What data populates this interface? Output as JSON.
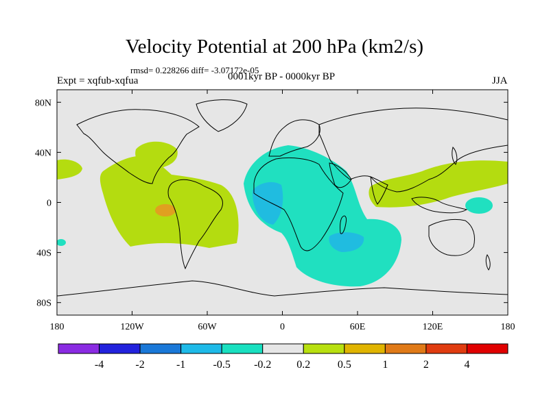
{
  "title": "Velocity Potential at 200 hPa (km2/s)",
  "stats": "rmsd= 0.228266 diff= -3.07172e-05",
  "subtitle_left": "Expt = xqfub-xqfua",
  "subtitle_center": "0001kyr BP - 0000kyr BP",
  "subtitle_right": "JJA",
  "chart_data": {
    "type": "contour-map",
    "variable": "Velocity potential difference at 200 hPa",
    "units": "km2/s",
    "x_ticks": [
      {
        "value": -180,
        "label": "180"
      },
      {
        "value": -120,
        "label": "120W"
      },
      {
        "value": -60,
        "label": "60W"
      },
      {
        "value": 0,
        "label": "0"
      },
      {
        "value": 60,
        "label": "60E"
      },
      {
        "value": 120,
        "label": "120E"
      },
      {
        "value": 180,
        "label": "180"
      }
    ],
    "y_ticks": [
      {
        "value": 80,
        "label": "80N"
      },
      {
        "value": 40,
        "label": "40N"
      },
      {
        "value": 0,
        "label": "0"
      },
      {
        "value": -40,
        "label": "40S"
      },
      {
        "value": -80,
        "label": "80S"
      }
    ],
    "xlim": [
      -180,
      180
    ],
    "ylim": [
      -90,
      90
    ],
    "colorbar": {
      "boundaries": [
        "-4",
        "-2",
        "-1",
        "-0.5",
        "-0.2",
        "0.2",
        "0.5",
        "1",
        "2",
        "4"
      ],
      "colors": [
        "#8a2be2",
        "#2222dd",
        "#1a78d8",
        "#1ebae8",
        "#19e0c0",
        "#e6e6e6",
        "#b8e010",
        "#e0b400",
        "#e07a18",
        "#e03c10",
        "#e00000"
      ]
    },
    "regions": [
      {
        "name": "Americas and tropical Pacific",
        "level": "0.2 to 0.5",
        "color": "#b4dc10"
      },
      {
        "name": "North Atlantic off eastern North America",
        "level": "0.2 to 0.5",
        "color": "#b4dc10"
      },
      {
        "name": "Central North Pacific",
        "level": "0.2 to 0.5",
        "color": "#b4dc10"
      },
      {
        "name": "Eastern tropical Pacific",
        "level": "0.5 to 1",
        "color": "#e0a020"
      },
      {
        "name": "Western Pacific and East Asia",
        "level": "0.2 to 0.5",
        "color": "#b4dc10"
      },
      {
        "name": "Africa and Indian Ocean",
        "level": "-0.5 to -0.2",
        "color": "#20e0c0"
      },
      {
        "name": "West Africa",
        "level": "-1 to -0.5",
        "color": "#20bce0"
      },
      {
        "name": "Madagascar region",
        "level": "-1 to -0.5",
        "color": "#20bce0"
      },
      {
        "name": "Western Pacific near New Guinea",
        "level": "-0.5 to -0.2",
        "color": "#20e0c0"
      },
      {
        "name": "South Pacific",
        "level": "-0.5 to -0.2",
        "color": "#20e0c0"
      }
    ]
  }
}
